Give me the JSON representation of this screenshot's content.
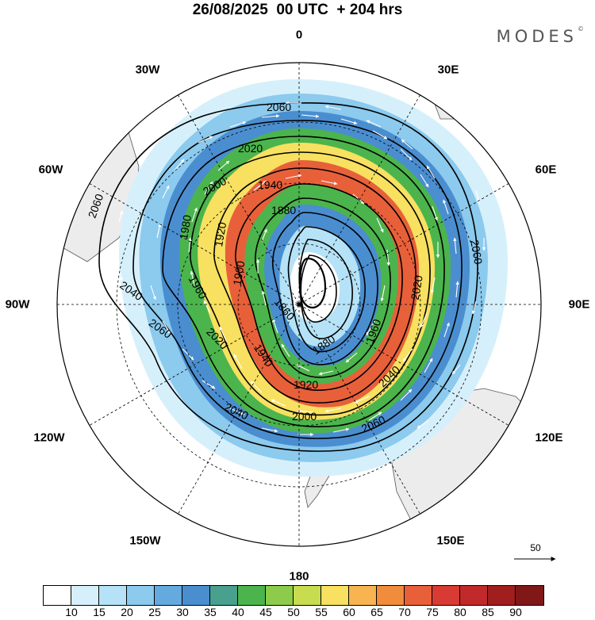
{
  "title": "26/08/2025  00 UTC  + 204 hrs",
  "brand": "MODES",
  "brand_mark": "©",
  "longitude_labels": [
    {
      "key": "0",
      "text": "0"
    },
    {
      "key": "30E",
      "text": "30E"
    },
    {
      "key": "60E",
      "text": "60E"
    },
    {
      "key": "90E",
      "text": "90E"
    },
    {
      "key": "120E",
      "text": "120E"
    },
    {
      "key": "150E",
      "text": "150E"
    },
    {
      "key": "180",
      "text": "180"
    },
    {
      "key": "150W",
      "text": "150W"
    },
    {
      "key": "120W",
      "text": "120W"
    },
    {
      "key": "90W",
      "text": "90W"
    },
    {
      "key": "60W",
      "text": "60W"
    },
    {
      "key": "30W",
      "text": "30W"
    }
  ],
  "contour_labels": [
    "2060",
    "2020",
    "2000",
    "1940",
    "1880",
    "1980",
    "1920",
    "1900",
    "1860",
    "2040",
    "1960",
    "2060",
    "2020",
    "1940",
    "1920",
    "2000",
    "2040",
    "2060",
    "2060",
    "2020",
    "1960",
    "1880",
    "2040",
    "2060"
  ],
  "reference_vector": {
    "label": "50",
    "arrow": "arrow-right-icon"
  },
  "colorbar": {
    "ticks": [
      "10",
      "15",
      "20",
      "25",
      "30",
      "35",
      "40",
      "45",
      "50",
      "55",
      "60",
      "65",
      "70",
      "75",
      "80",
      "85",
      "90"
    ],
    "colors": [
      "#ffffff",
      "#d6f0fb",
      "#b5e2f7",
      "#8ccaee",
      "#64aadf",
      "#4a8ed0",
      "#4aa08e",
      "#4cb44c",
      "#8ccc4a",
      "#c8dc50",
      "#f8e060",
      "#f8b450",
      "#f08c3c",
      "#e8603a",
      "#d83a34",
      "#c02a2a",
      "#a01e1e",
      "#801818"
    ]
  },
  "colors": {
    "land": "#ececec",
    "grid": "#000000",
    "contour": "#000000"
  }
}
